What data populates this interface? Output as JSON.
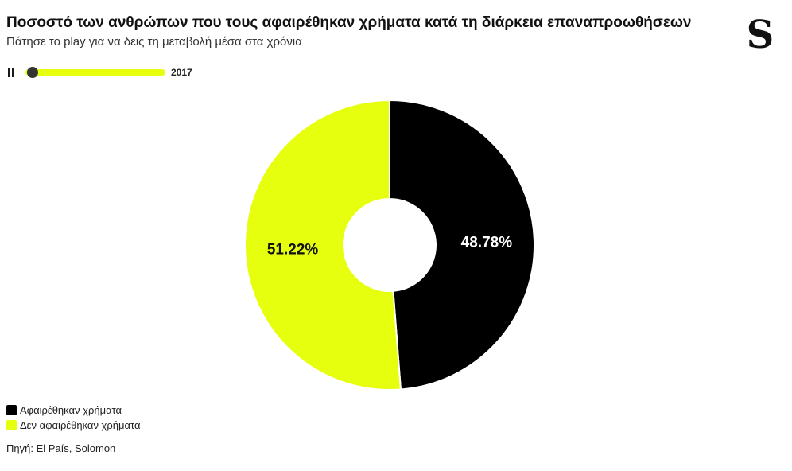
{
  "header": {
    "title": "Ποσοστό των ανθρώπων που τους αφαιρέθηκαν χρήματα κατά τη διάρκεια επαναπροωθήσεων",
    "subtitle": "Πάτησε το play για να δεις τη μεταβολή μέσα στα χρόνια",
    "logo_text": "S"
  },
  "player": {
    "state": "playing",
    "year_label": "2017",
    "progress": 0.0
  },
  "colors": {
    "removed": "#000000",
    "not_removed": "#e6ff0f",
    "label_on_dark": "#ffffff",
    "label_on_light": "#111111"
  },
  "chart_data": {
    "type": "pie",
    "donut": true,
    "year": "2017",
    "categories": [
      "Αφαιρέθηκαν χρήματα",
      "Δεν αφαιρέθηκαν χρήματα"
    ],
    "values": [
      48.78,
      51.22
    ],
    "data_labels": [
      "48.78%",
      "51.22%"
    ],
    "legend": "bottom-left"
  },
  "legend": {
    "items": [
      {
        "label": "Αφαιρέθηκαν χρήματα",
        "color": "#000000"
      },
      {
        "label": "Δεν αφαιρέθηκαν χρήματα",
        "color": "#e6ff0f"
      }
    ]
  },
  "footer": {
    "source": "Πηγή: El País, Solomon"
  }
}
